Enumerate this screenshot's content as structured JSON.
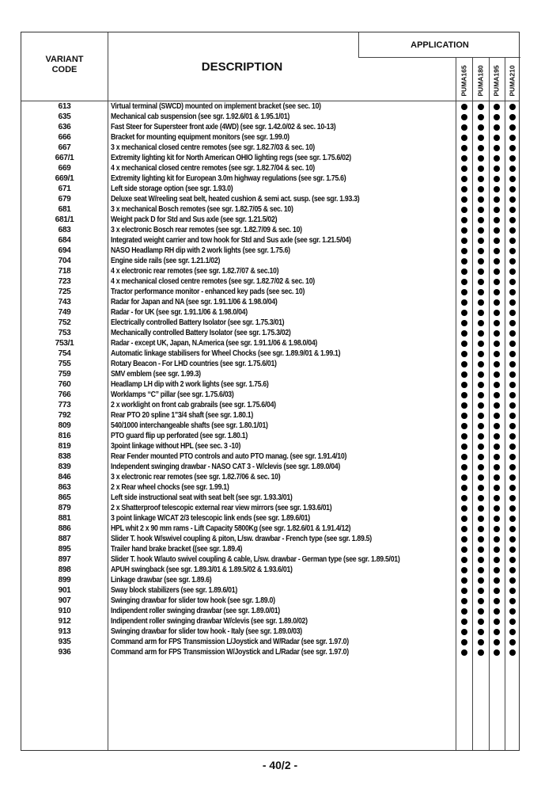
{
  "header": {
    "code_label_1": "VARIANT",
    "code_label_2": "CODE",
    "description_label": "DESCRIPTION",
    "application_label": "APPLICATION",
    "models": [
      "PUMA165",
      "PUMA180",
      "PUMA195",
      "PUMA210"
    ]
  },
  "rows": [
    {
      "code": "613",
      "description": "Virtual terminal (SWCD) mounted on implement bracket (see sec. 10)",
      "applies": [
        true,
        true,
        true,
        true
      ]
    },
    {
      "code": "635",
      "description": "Mechanical cab suspension (see sgr. 1.92.6/01 & 1.95.1/01)",
      "applies": [
        true,
        true,
        true,
        true
      ]
    },
    {
      "code": "636",
      "description": "Fast Steer for Supersteer front axle (4WD) (see sgr. 1.42.0/02 & sec. 10-13)",
      "applies": [
        true,
        true,
        true,
        true
      ]
    },
    {
      "code": "666",
      "description": "Bracket for mounting equipment monitors (see sgr. 1.99.0)",
      "applies": [
        true,
        true,
        true,
        true
      ]
    },
    {
      "code": "667",
      "description": "3 x mechanical closed centre remotes (see sgr. 1.82.7/03 & sec. 10)",
      "applies": [
        true,
        true,
        true,
        true
      ]
    },
    {
      "code": "667/1",
      "description": "Extremity lighting kit for North American OHIO lighting regs (see sgr. 1.75.6/02)",
      "applies": [
        true,
        true,
        true,
        true
      ]
    },
    {
      "code": "669",
      "description": "4 x mechanical closed centre remotes (see sgr. 1.82.7/04 & sec. 10)",
      "applies": [
        true,
        true,
        true,
        true
      ]
    },
    {
      "code": "669/1",
      "description": "Extremity lighting kit for European 3.0m highway regulations (see sgr. 1.75.6)",
      "applies": [
        true,
        true,
        true,
        true
      ]
    },
    {
      "code": "671",
      "description": "Left side storage option (see sgr. 1.93.0)",
      "applies": [
        true,
        true,
        true,
        true
      ]
    },
    {
      "code": "679",
      "description": "Deluxe seat W/reeling seat belt, heated cushion & semi act. susp. (see sgr. 1.93.3)",
      "applies": [
        true,
        true,
        true,
        true
      ]
    },
    {
      "code": "681",
      "description": "3 x mechanical Bosch remotes (see sgr. 1.82.7/05 & sec. 10)",
      "applies": [
        true,
        true,
        true,
        true
      ]
    },
    {
      "code": "681/1",
      "description": "Weight pack D for Std and Sus axle (see sgr. 1.21.5/02)",
      "applies": [
        true,
        true,
        true,
        true
      ]
    },
    {
      "code": "683",
      "description": "3 x electronic Bosch rear remotes (see sgr. 1.82.7/09 & sec. 10)",
      "applies": [
        true,
        true,
        true,
        true
      ]
    },
    {
      "code": "684",
      "description": "Integrated weight carrier and tow hook for Std and Sus axle (see sgr. 1.21.5/04)",
      "applies": [
        true,
        true,
        true,
        true
      ]
    },
    {
      "code": "694",
      "description": "NASO Headlamp RH dip with 2 work lights (see sgr. 1.75.6)",
      "applies": [
        true,
        true,
        true,
        true
      ]
    },
    {
      "code": "704",
      "description": "Engine side rails (see sgr. 1.21.1/02)",
      "applies": [
        true,
        true,
        true,
        true
      ]
    },
    {
      "code": "718",
      "description": "4 x electronic rear remotes (see sgr. 1.82.7/07 & sec.10)",
      "applies": [
        true,
        true,
        true,
        true
      ]
    },
    {
      "code": "723",
      "description": "4 x mechanical closed centre remotes (see sgr. 1.82.7/02 & sec. 10)",
      "applies": [
        true,
        true,
        true,
        true
      ]
    },
    {
      "code": "725",
      "description": "Tractor performance monitor - enhanced key pads (see sec. 10)",
      "applies": [
        true,
        true,
        true,
        true
      ]
    },
    {
      "code": "743",
      "description": "Radar for Japan and NA (see sgr. 1.91.1/06 & 1.98.0/04)",
      "applies": [
        true,
        true,
        true,
        true
      ]
    },
    {
      "code": "749",
      "description": "Radar - for UK (see sgr. 1.91.1/06 & 1.98.0/04)",
      "applies": [
        true,
        true,
        true,
        true
      ]
    },
    {
      "code": "752",
      "description": "Electrically controlled Battery Isolator (see sgr. 1.75.3/01)",
      "applies": [
        true,
        true,
        true,
        true
      ]
    },
    {
      "code": "753",
      "description": "Mechanically controlled Battery Isolator (see sgr. 1.75.3/02)",
      "applies": [
        true,
        true,
        true,
        true
      ]
    },
    {
      "code": "753/1",
      "description": "Radar - except UK, Japan, N.America (see sgr. 1.91.1/06 & 1.98.0/04)",
      "applies": [
        true,
        true,
        true,
        true
      ]
    },
    {
      "code": "754",
      "description": "Automatic linkage stabilisers for Wheel Chocks (see sgr. 1.89.9/01 & 1.99.1)",
      "applies": [
        true,
        true,
        true,
        true
      ]
    },
    {
      "code": "755",
      "description": "Rotary Beacon - For LHD countries (see sgr. 1.75.6/01)",
      "applies": [
        true,
        true,
        true,
        true
      ]
    },
    {
      "code": "759",
      "description": "SMV emblem (see sgr. 1.99.3)",
      "applies": [
        true,
        true,
        true,
        true
      ]
    },
    {
      "code": "760",
      "description": "Headlamp LH dip with 2 work lights (see sgr. 1.75.6)",
      "applies": [
        true,
        true,
        true,
        true
      ]
    },
    {
      "code": "766",
      "description": "Worklamps “C” pillar (see sgr. 1.75.6/03)",
      "applies": [
        true,
        true,
        true,
        true
      ]
    },
    {
      "code": "773",
      "description": "2 x worklight on front cab grabrails (see sgr. 1.75.6/04)",
      "applies": [
        true,
        true,
        true,
        true
      ]
    },
    {
      "code": "792",
      "description": "Rear PTO 20 spline 1\"3/4 shaft (see sgr. 1.80.1)",
      "applies": [
        true,
        true,
        true,
        true
      ]
    },
    {
      "code": "809",
      "description": "540/1000 interchangeable shafts (see sgr. 1.80.1/01)",
      "applies": [
        true,
        true,
        true,
        true
      ]
    },
    {
      "code": "816",
      "description": "PTO guard flip up perforated (see sgr. 1.80.1)",
      "applies": [
        true,
        true,
        true,
        true
      ]
    },
    {
      "code": "819",
      "description": "3point linkage without HPL (see sec. 3 -10)",
      "applies": [
        true,
        true,
        true,
        true
      ]
    },
    {
      "code": "838",
      "description": "Rear Fender mounted PTO controls and auto PTO manag. (see sgr. 1.91.4/10)",
      "applies": [
        true,
        true,
        true,
        true
      ]
    },
    {
      "code": "839",
      "description": "Independent swinging drawbar - NASO CAT 3 - W/clevis (see sgr. 1.89.0/04)",
      "applies": [
        true,
        true,
        true,
        true
      ]
    },
    {
      "code": "846",
      "description": "3 x electronic rear remotes (see sgr. 1.82.7/06 & sec. 10)",
      "applies": [
        true,
        true,
        true,
        true
      ]
    },
    {
      "code": "863",
      "description": "2 x Rear wheel chocks (see sgr. 1.99.1)",
      "applies": [
        true,
        true,
        true,
        true
      ]
    },
    {
      "code": "865",
      "description": "Left side instructional seat with seat belt (see sgr. 1.93.3/01)",
      "applies": [
        true,
        true,
        true,
        true
      ]
    },
    {
      "code": "879",
      "description": "2 x Shatterproof telescopic external rear view mirrors (see sgr. 1.93.6/01)",
      "applies": [
        true,
        true,
        true,
        true
      ]
    },
    {
      "code": "881",
      "description": "3 point linkage W/CAT 2/3 telescopic link ends (see sgr. 1.89.6/01)",
      "applies": [
        true,
        true,
        true,
        true
      ]
    },
    {
      "code": "886",
      "description": "HPL whit 2 x 90 mm rams - Lift Capacity 5800Kg (see sgr. 1.82.6/01 & 1.91.4/12)",
      "applies": [
        true,
        true,
        true,
        true
      ]
    },
    {
      "code": "887",
      "description": "Slider T. hook W/swivel coupling & piton, L/sw. drawbar - French type (see sgr. 1.89.5)",
      "applies": [
        true,
        true,
        true,
        true
      ]
    },
    {
      "code": "895",
      "description": "Trailer hand brake bracket ((see sgr. 1.89.4)",
      "applies": [
        true,
        true,
        true,
        true
      ]
    },
    {
      "code": "897",
      "description": "Slider T. hook W/auto swivel coupling & cable, L/sw. drawbar - German type (see sgr. 1.89.5/01)",
      "applies": [
        true,
        true,
        true,
        true
      ]
    },
    {
      "code": "898",
      "description": "APUH swingback (see sgr. 1.89.3/01 & 1.89.5/02 & 1.93.6/01)",
      "applies": [
        true,
        true,
        true,
        true
      ]
    },
    {
      "code": "899",
      "description": "Linkage drawbar (see sgr. 1.89.6)",
      "applies": [
        true,
        true,
        true,
        true
      ]
    },
    {
      "code": "901",
      "description": "Sway block stabilizers (see sgr. 1.89.6/01)",
      "applies": [
        true,
        true,
        true,
        true
      ]
    },
    {
      "code": "907",
      "description": "Swinging drawbar for slider tow hook (see sgr. 1.89.0)",
      "applies": [
        true,
        true,
        true,
        true
      ]
    },
    {
      "code": "910",
      "description": "Indipendent roller swinging drawbar (see sgr. 1.89.0/01)",
      "applies": [
        true,
        true,
        true,
        true
      ]
    },
    {
      "code": "912",
      "description": "Indipendent roller swinging drawbar W/clevis (see sgr. 1.89.0/02)",
      "applies": [
        true,
        true,
        true,
        true
      ]
    },
    {
      "code": "913",
      "description": "Swinging drawbar for slider tow hook - Italy (see sgr. 1.89.0/03)",
      "applies": [
        true,
        true,
        true,
        true
      ]
    },
    {
      "code": "935",
      "description": "Command arm for FPS Transmission L/Joystick and W/Radar (see sgr. 1.97.0)",
      "applies": [
        true,
        true,
        true,
        true
      ]
    },
    {
      "code": "936",
      "description": "Command arm for FPS Transmission W/Joystick and L/Radar (see sgr. 1.97.0)",
      "applies": [
        true,
        true,
        true,
        true
      ]
    }
  ],
  "footer": {
    "page_number": "- 40/2 -"
  }
}
